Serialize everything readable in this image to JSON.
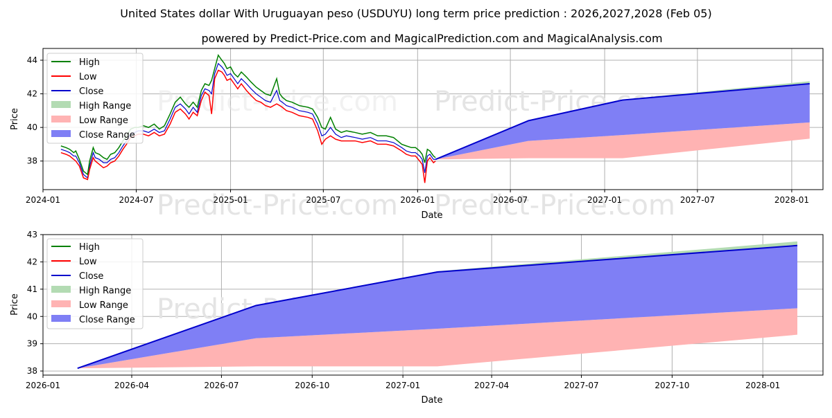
{
  "title": "United States dollar With Uruguayan peso (USDUYU) long term price prediction : 2026,2027,2028 (Feb 05)",
  "subtitle": "powered by Predict-Price.com and MagicalPrediction.com and MagicalAnalysis.com",
  "watermark": "Predict-Price.com",
  "colors": {
    "high": "#008000",
    "low": "#ff0000",
    "close": "#0000cc",
    "high_range": "#b3dbb3",
    "low_range": "#ffb3b3",
    "close_range": "#7f7ff5",
    "grid": "#b0b0b0"
  },
  "legend": {
    "high": "High",
    "low": "Low",
    "close": "Close",
    "high_range": "High Range",
    "low_range": "Low Range",
    "close_range": "Close Range"
  },
  "chart_data": [
    {
      "type": "line",
      "xlabel": "Date",
      "ylabel": "Price",
      "legend_position": "top-left",
      "grid": true,
      "xlim": [
        "2024-01-01",
        "2028-03-02"
      ],
      "ylim": [
        36.3,
        44.7
      ],
      "x_ticks": [
        "2024-01",
        "2024-07",
        "2025-01",
        "2025-07",
        "2026-01",
        "2026-07",
        "2027-01",
        "2027-07",
        "2028-01"
      ],
      "x_tick_dates": [
        "2024-01-01",
        "2024-07-01",
        "2025-01-01",
        "2025-07-01",
        "2026-01-01",
        "2026-07-01",
        "2027-01-01",
        "2027-07-01",
        "2028-01-01"
      ],
      "y_ticks": [
        "38",
        "40",
        "42",
        "44"
      ],
      "history_dates": [
        "2024-02-05",
        "2024-02-15",
        "2024-02-22",
        "2024-03-01",
        "2024-03-05",
        "2024-03-12",
        "2024-03-20",
        "2024-03-28",
        "2024-04-01",
        "2024-04-08",
        "2024-04-12",
        "2024-04-20",
        "2024-04-28",
        "2024-05-05",
        "2024-05-12",
        "2024-05-20",
        "2024-05-28",
        "2024-06-05",
        "2024-06-12",
        "2024-06-20",
        "2024-06-28",
        "2024-07-05",
        "2024-07-15",
        "2024-07-25",
        "2024-08-05",
        "2024-08-15",
        "2024-08-25",
        "2024-09-05",
        "2024-09-15",
        "2024-09-25",
        "2024-10-05",
        "2024-10-12",
        "2024-10-20",
        "2024-10-28",
        "2024-11-05",
        "2024-11-12",
        "2024-11-20",
        "2024-11-25",
        "2024-12-01",
        "2024-12-08",
        "2024-12-15",
        "2024-12-20",
        "2024-12-25",
        "2025-01-01",
        "2025-01-08",
        "2025-01-15",
        "2025-01-22",
        "2025-02-01",
        "2025-02-10",
        "2025-02-20",
        "2025-03-01",
        "2025-03-10",
        "2025-03-20",
        "2025-04-01",
        "2025-04-07",
        "2025-04-12",
        "2025-04-20",
        "2025-05-01",
        "2025-05-15",
        "2025-06-01",
        "2025-06-10",
        "2025-06-20",
        "2025-06-28",
        "2025-07-05",
        "2025-07-15",
        "2025-07-25",
        "2025-08-05",
        "2025-08-15",
        "2025-09-01",
        "2025-09-15",
        "2025-10-01",
        "2025-10-15",
        "2025-11-01",
        "2025-11-15",
        "2025-12-01",
        "2025-12-10",
        "2025-12-20",
        "2025-12-28",
        "2026-01-05",
        "2026-01-10",
        "2026-01-15",
        "2026-01-20",
        "2026-01-25",
        "2026-02-01",
        "2026-02-05"
      ],
      "history_high": [
        38.9,
        38.8,
        38.7,
        38.5,
        38.6,
        38.1,
        37.4,
        37.2,
        38.0,
        38.8,
        38.5,
        38.4,
        38.2,
        38.1,
        38.4,
        38.5,
        38.8,
        39.2,
        39.5,
        39.9,
        40.0,
        40.0,
        40.1,
        40.0,
        40.2,
        39.9,
        40.1,
        40.8,
        41.5,
        41.8,
        41.4,
        41.2,
        41.5,
        41.2,
        42.2,
        42.6,
        42.5,
        42.8,
        43.5,
        44.3,
        44.0,
        43.8,
        43.5,
        43.6,
        43.2,
        43.0,
        43.3,
        43.0,
        42.7,
        42.4,
        42.2,
        42.0,
        41.9,
        42.9,
        42.0,
        41.8,
        41.6,
        41.5,
        41.3,
        41.2,
        41.1,
        40.6,
        40.0,
        39.9,
        40.6,
        39.9,
        39.7,
        39.8,
        39.7,
        39.6,
        39.7,
        39.5,
        39.5,
        39.4,
        39.0,
        38.9,
        38.8,
        38.8,
        38.6,
        38.4,
        37.9,
        38.7,
        38.6,
        38.3,
        38.2
      ],
      "history_low": [
        38.5,
        38.4,
        38.3,
        38.1,
        38.0,
        37.7,
        37.0,
        36.9,
        37.5,
        38.2,
        38.0,
        37.8,
        37.6,
        37.7,
        37.9,
        38.0,
        38.3,
        38.7,
        39.0,
        39.4,
        39.5,
        39.6,
        39.6,
        39.5,
        39.7,
        39.5,
        39.6,
        40.2,
        40.9,
        41.1,
        40.8,
        40.5,
        40.9,
        40.7,
        41.6,
        42.1,
        41.9,
        40.8,
        42.9,
        43.4,
        43.3,
        43.1,
        42.8,
        42.9,
        42.6,
        42.3,
        42.6,
        42.2,
        41.9,
        41.6,
        41.5,
        41.3,
        41.2,
        41.4,
        41.3,
        41.2,
        41.0,
        40.9,
        40.7,
        40.6,
        40.5,
        39.8,
        39.0,
        39.3,
        39.5,
        39.3,
        39.2,
        39.2,
        39.2,
        39.1,
        39.2,
        39.0,
        39.0,
        38.9,
        38.6,
        38.4,
        38.3,
        38.3,
        38.0,
        37.8,
        36.7,
        38.0,
        38.2,
        37.9,
        38.0
      ],
      "history_close": [
        38.7,
        38.6,
        38.5,
        38.3,
        38.3,
        37.9,
        37.2,
        37.0,
        37.7,
        38.5,
        38.2,
        38.1,
        37.9,
        37.9,
        38.1,
        38.2,
        38.5,
        38.9,
        39.2,
        39.6,
        39.7,
        39.8,
        39.8,
        39.7,
        39.9,
        39.7,
        39.8,
        40.5,
        41.2,
        41.4,
        41.1,
        40.8,
        41.2,
        40.9,
        41.9,
        42.3,
        42.2,
        42.0,
        43.2,
        43.8,
        43.6,
        43.4,
        43.1,
        43.2,
        42.9,
        42.6,
        42.9,
        42.6,
        42.3,
        42.0,
        41.8,
        41.6,
        41.5,
        42.2,
        41.6,
        41.5,
        41.3,
        41.2,
        41.0,
        40.9,
        40.8,
        40.2,
        39.5,
        39.6,
        40.0,
        39.6,
        39.4,
        39.5,
        39.4,
        39.3,
        39.4,
        39.2,
        39.2,
        39.1,
        38.8,
        38.6,
        38.5,
        38.5,
        38.3,
        38.1,
        37.3,
        38.3,
        38.4,
        38.1,
        38.1
      ]
    },
    {
      "type": "area",
      "xlabel": "Date",
      "ylabel": "Price",
      "legend_position": "top-left",
      "grid": true,
      "xlim": [
        "2026-01-01",
        "2028-03-02"
      ],
      "ylim": [
        37.85,
        43.0
      ],
      "x_ticks": [
        "2026-01",
        "2026-04",
        "2026-07",
        "2026-10",
        "2027-01",
        "2027-04",
        "2027-07",
        "2027-10",
        "2028-01"
      ],
      "x_tick_dates": [
        "2026-01-01",
        "2026-04-01",
        "2026-07-01",
        "2026-10-01",
        "2027-01-01",
        "2027-04-01",
        "2027-07-01",
        "2027-10-01",
        "2028-01-01"
      ],
      "y_ticks": [
        "38",
        "39",
        "40",
        "41",
        "42",
        "43"
      ],
      "forecast_dates": [
        "2026-02-05",
        "2026-08-05",
        "2027-02-05",
        "2028-02-05"
      ],
      "close": [
        38.1,
        40.4,
        41.63,
        42.6
      ],
      "close_range_low": [
        38.1,
        39.2,
        39.55,
        40.3
      ],
      "close_range_high": [
        38.1,
        40.4,
        41.63,
        42.6
      ],
      "low_range_low": [
        38.1,
        38.17,
        38.17,
        39.33
      ],
      "low_range_high": [
        38.1,
        39.2,
        39.55,
        40.3
      ],
      "high_range_low": [
        38.1,
        40.4,
        41.63,
        42.6
      ],
      "high_range_high": [
        38.1,
        40.42,
        41.66,
        42.75
      ]
    }
  ]
}
